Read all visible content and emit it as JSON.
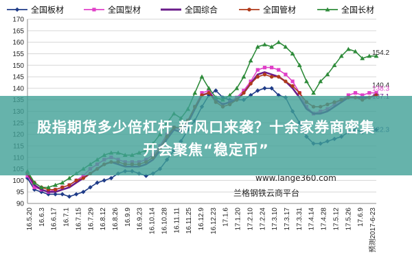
{
  "chart_data": {
    "type": "line",
    "ylim": [
      90,
      170
    ],
    "yticks": [
      90,
      95,
      100,
      105,
      110,
      115,
      120,
      125,
      130,
      135,
      140,
      145,
      150,
      155,
      160,
      165,
      170
    ],
    "grid": "horizontal",
    "legend_position": "top",
    "x_tick_labels": [
      "16.5.20",
      "16.6.3",
      "16.6.17",
      "16.7.1",
      "16.7.15",
      "16.7.29",
      "16.8.12",
      "16.8.26",
      "16.9.9",
      "16.9.23",
      "16.10.14",
      "16.10.28",
      "16.11.11",
      "16.11.25",
      "16.12.9",
      "16.12.23",
      "17.1.6",
      "17.1.20",
      "17.2.10",
      "17.2.24",
      "17.3.10",
      "17.3.17",
      "17.3.31",
      "17.4.14",
      "17.4.28",
      "17.5.12",
      "17.5.26",
      "17.6.9",
      "预测2017-6-23"
    ],
    "x_points": 51,
    "series": [
      {
        "name": "全国板材",
        "color": "#1f3c88",
        "marker": "diamond",
        "values": [
          101,
          96,
          95,
          94,
          94,
          94,
          93,
          94,
          95,
          97,
          99,
          100,
          101,
          103,
          104,
          104,
          103,
          102,
          103,
          105,
          109,
          113,
          117,
          122,
          126,
          132,
          137,
          139,
          136,
          135,
          135,
          135,
          137,
          139,
          140,
          140,
          137,
          136,
          130,
          125,
          119,
          116,
          116,
          117,
          118,
          119,
          121,
          122,
          121,
          122,
          122
        ]
      },
      {
        "name": "全国型材",
        "color": "#e040c8",
        "marker": "square",
        "values": [
          102,
          97,
          96,
          95,
          96,
          97,
          98,
          100,
          102,
          105,
          107,
          109,
          110,
          109,
          108,
          108,
          108,
          109,
          111,
          115,
          120,
          123,
          122,
          126,
          132,
          138,
          139,
          135,
          133,
          134,
          136,
          139,
          143,
          148,
          149,
          149,
          148,
          146,
          143,
          138,
          132,
          129,
          130,
          131,
          133,
          135,
          137,
          138,
          137,
          138,
          138
        ]
      },
      {
        "name": "全国综合",
        "color": "#6a1b8a",
        "marker": "line",
        "values": [
          103,
          98,
          96,
          95,
          95,
          96,
          97,
          99,
          101,
          103,
          105,
          107,
          108,
          107,
          106,
          106,
          106,
          107,
          109,
          113,
          118,
          122,
          121,
          125,
          131,
          137,
          138,
          135,
          133,
          134,
          135,
          138,
          142,
          146,
          147,
          146,
          145,
          143,
          140,
          136,
          131,
          129,
          129,
          130,
          132,
          134,
          136,
          136,
          136,
          136,
          137
        ]
      },
      {
        "name": "全国管材",
        "color": "#b03a1a",
        "marker": "circle",
        "values": [
          103,
          99,
          97,
          96,
          96,
          97,
          98,
          100,
          101,
          103,
          105,
          107,
          108,
          108,
          107,
          107,
          107,
          108,
          110,
          114,
          119,
          123,
          123,
          126,
          132,
          137,
          138,
          134,
          132,
          133,
          135,
          138,
          142,
          145,
          146,
          145,
          145,
          143,
          141,
          138,
          134,
          132,
          132,
          133,
          134,
          135,
          136,
          136,
          135,
          136,
          137
        ]
      },
      {
        "name": "全国长材",
        "color": "#2e8b3a",
        "marker": "triangle",
        "values": [
          104,
          99,
          97,
          97,
          98,
          99,
          101,
          103,
          105,
          107,
          109,
          111,
          112,
          112,
          111,
          111,
          112,
          113,
          116,
          120,
          125,
          129,
          127,
          131,
          138,
          145,
          140,
          136,
          135,
          137,
          140,
          145,
          152,
          158,
          159,
          158,
          160,
          158,
          155,
          150,
          143,
          138,
          143,
          146,
          150,
          154,
          157,
          156,
          153,
          154,
          154
        ]
      }
    ],
    "value_callouts": [
      {
        "text": "154.2",
        "series": 4,
        "color": "#222222"
      },
      {
        "text": "140.4",
        "series": 1,
        "color": "#222222"
      },
      {
        "text": "138.3",
        "series": 1,
        "color": "#e040c8"
      },
      {
        "text": "137.1",
        "series": 2,
        "color": "#6a1b8a"
      },
      {
        "text": "122.3",
        "series": 0,
        "color": "#1f3c88"
      }
    ]
  },
  "headline": {
    "line1": "股指期货多少倍杠杆 新风口来袭？十余家券商密集",
    "line2": "开会聚焦“稳定币”"
  },
  "watermark": {
    "url": "www.lange360.com",
    "caption": "兰格钢铁云商平台"
  }
}
